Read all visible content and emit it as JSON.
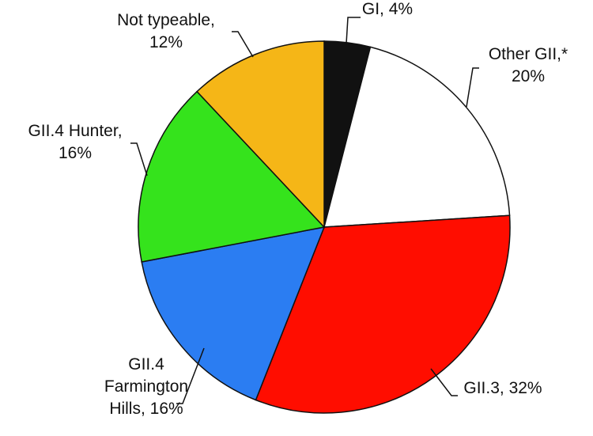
{
  "chart_data": {
    "type": "pie",
    "categories": [
      "GI, 4%",
      "Other GII,*\n20%",
      "GII.3, 32%",
      "GII.4\nFarmington\nHills, 16%",
      "GII.4 Hunter,\n16%",
      "Not typeable,\n12%"
    ],
    "values": [
      4,
      20,
      32,
      16,
      16,
      12
    ],
    "colors": [
      "#111111",
      "#ffffff",
      "#ff0d00",
      "#2b7df2",
      "#35e31c",
      "#f5b617"
    ]
  }
}
